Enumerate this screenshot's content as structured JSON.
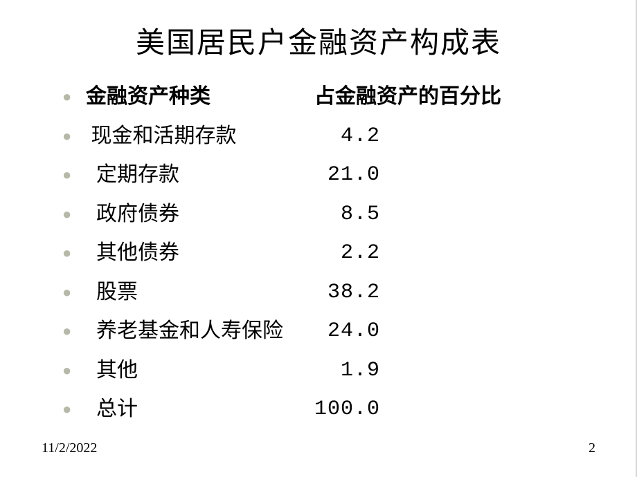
{
  "title": "美国居民户金融资产构成表",
  "header": {
    "left": "金融资产种类",
    "right": "占金融资产的百分比"
  },
  "rows": [
    {
      "label": " 现金和活期存款",
      "value": "  4.2",
      "indent": "indent-1"
    },
    {
      "label": "  定期存款",
      "value": " 21.0",
      "indent": "indent-2"
    },
    {
      "label": "  政府债券",
      "value": "  8.5",
      "indent": "indent-2"
    },
    {
      "label": "  其他债券",
      "value": "  2.2",
      "indent": "indent-2"
    },
    {
      "label": "  股票",
      "value": " 38.2",
      "indent": "indent-2"
    },
    {
      "label": "  养老基金和人寿保险",
      "value": " 24.0",
      "indent": "indent-2"
    },
    {
      "label": "  其他",
      "value": "  1.9",
      "indent": "indent-2"
    },
    {
      "label": "  总计",
      "value": "100.0",
      "indent": "indent-2"
    }
  ],
  "footer": {
    "date": "11/2/2022",
    "page": "2"
  },
  "colors": {
    "bg": "#ffffff",
    "text": "#000000",
    "bullet": "#b8b8a8"
  },
  "fontsize": {
    "title": 42,
    "body": 30,
    "footer": 20
  }
}
